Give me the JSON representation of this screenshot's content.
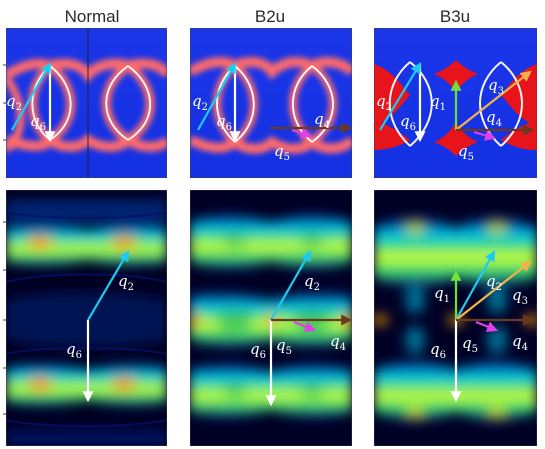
{
  "columns": [
    {
      "title": "Normal"
    },
    {
      "title": "B2u"
    },
    {
      "title": "B3u"
    }
  ],
  "colors": {
    "q1": "#6fe23a",
    "q2": "#1ecbf0",
    "q3": "#f5b24a",
    "q4": "#6b3a1e",
    "q5": "#e23ee8",
    "q6": "#ffffff",
    "top_background": "#1633e6",
    "top_contour": "#ff5a5a",
    "bottom_background": "#000025",
    "bottom_band": "#e8ff2a"
  },
  "vectors": {
    "q1": "q",
    "q1_sub": "1",
    "q2": "q",
    "q2_sub": "2",
    "q3": "q",
    "q3_sub": "3",
    "q4": "q",
    "q4_sub": "4",
    "q5": "q",
    "q5_sub": "5",
    "q6": "q",
    "q6_sub": "6"
  }
}
